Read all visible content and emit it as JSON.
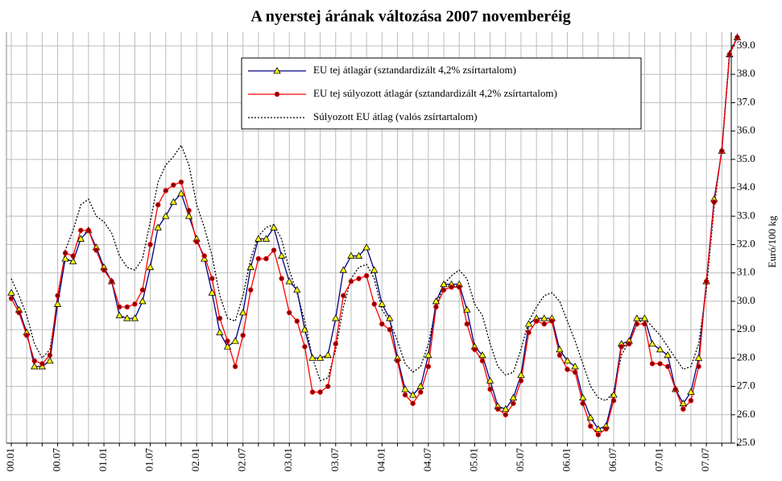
{
  "chart_data": {
    "type": "line",
    "title": "A nyerstej árának változása 2007 novemberéig",
    "y_label": "Euró/100 kg",
    "categories": [
      "00.01",
      null,
      null,
      null,
      null,
      null,
      "00.07",
      null,
      null,
      null,
      null,
      null,
      "01.01",
      null,
      null,
      null,
      null,
      null,
      "01.07",
      null,
      null,
      null,
      null,
      null,
      "02.01",
      null,
      null,
      null,
      null,
      null,
      "02.07",
      null,
      null,
      null,
      null,
      null,
      "03.01",
      null,
      null,
      null,
      null,
      null,
      "03.07",
      null,
      null,
      null,
      null,
      null,
      "04.01",
      null,
      null,
      null,
      null,
      null,
      "04.07",
      null,
      null,
      null,
      null,
      null,
      "05.01",
      null,
      null,
      null,
      null,
      null,
      "05.07",
      null,
      null,
      null,
      null,
      null,
      "06.01",
      null,
      null,
      null,
      null,
      null,
      "06.07",
      null,
      null,
      null,
      null,
      null,
      "07.01",
      null,
      null,
      null,
      null,
      null,
      "07.07",
      null,
      null,
      null,
      null
    ],
    "series": [
      {
        "name": "EU tej átlagár (sztandardizált 4,2% zsírtartalom)",
        "color": "#000080",
        "marker": "triangle",
        "dash": "solid",
        "values": [
          30.3,
          29.7,
          28.9,
          27.7,
          27.7,
          27.9,
          29.9,
          31.5,
          31.4,
          32.2,
          32.5,
          31.9,
          31.2,
          30.7,
          29.5,
          29.4,
          29.4,
          30.0,
          31.2,
          32.6,
          33.0,
          33.5,
          33.8,
          33.0,
          32.2,
          31.5,
          30.3,
          28.9,
          28.4,
          28.6,
          29.6,
          31.2,
          32.2,
          32.2,
          32.6,
          31.6,
          30.7,
          30.4,
          29.0,
          28.0,
          28.0,
          28.1,
          29.4,
          31.1,
          31.6,
          31.6,
          31.9,
          31.1,
          29.9,
          29.4,
          28.0,
          26.9,
          26.7,
          27.0,
          28.1,
          30.0,
          30.6,
          30.6,
          30.6,
          29.7,
          28.4,
          28.1,
          27.2,
          26.3,
          26.2,
          26.6,
          27.4,
          29.2,
          29.4,
          29.4,
          29.4,
          28.3,
          27.9,
          27.7,
          26.6,
          25.9,
          25.5,
          25.6,
          26.7,
          28.5,
          28.6,
          29.4,
          29.4,
          28.5,
          28.3,
          28.1,
          26.9,
          26.4,
          26.8,
          28.0,
          30.7,
          33.6,
          35.3,
          38.7,
          39.3
        ]
      },
      {
        "name": "EU tej súlyozott átlagár (sztandardizált 4,2% zsírtartalom)",
        "color": "#ff0000",
        "marker": "circle",
        "dash": "solid",
        "values": [
          30.1,
          29.6,
          28.8,
          27.9,
          27.8,
          28.1,
          30.2,
          31.7,
          31.6,
          32.5,
          32.5,
          31.8,
          31.1,
          30.7,
          29.8,
          29.8,
          29.9,
          30.4,
          32.0,
          33.4,
          33.9,
          34.1,
          34.2,
          33.2,
          32.1,
          31.6,
          30.8,
          29.4,
          28.6,
          27.7,
          28.8,
          30.4,
          31.5,
          31.5,
          31.8,
          30.8,
          29.6,
          29.3,
          28.4,
          26.8,
          26.8,
          27.0,
          28.5,
          30.2,
          30.7,
          30.8,
          30.9,
          29.9,
          29.2,
          29.0,
          27.9,
          26.7,
          26.4,
          26.8,
          27.7,
          29.8,
          30.4,
          30.5,
          30.5,
          29.2,
          28.3,
          27.9,
          26.9,
          26.2,
          26.0,
          26.4,
          27.2,
          28.9,
          29.3,
          29.2,
          29.3,
          28.1,
          27.6,
          27.5,
          26.4,
          25.6,
          25.3,
          25.5,
          26.5,
          28.4,
          28.5,
          29.2,
          29.2,
          27.8,
          27.8,
          27.7,
          26.9,
          26.2,
          26.5,
          27.7,
          30.7,
          33.5,
          35.3,
          38.7,
          39.3
        ]
      },
      {
        "name": "Súlyozott EU átlag (valós zsírtartalom)",
        "color": "#000000",
        "marker": "none",
        "dash": "dotted",
        "values": [
          30.8,
          30.2,
          29.5,
          28.5,
          28.0,
          28.3,
          30.0,
          31.8,
          32.5,
          33.4,
          33.6,
          33.0,
          32.8,
          32.4,
          31.6,
          31.2,
          31.1,
          31.5,
          32.8,
          34.2,
          34.8,
          35.1,
          35.5,
          34.8,
          33.4,
          32.6,
          31.6,
          30.2,
          29.4,
          29.3,
          30.2,
          31.5,
          32.3,
          32.6,
          32.7,
          32.2,
          31.1,
          30.3,
          29.3,
          28.0,
          27.2,
          27.3,
          28.3,
          29.8,
          30.8,
          31.2,
          31.3,
          30.8,
          29.7,
          29.3,
          28.6,
          27.8,
          27.5,
          27.7,
          28.5,
          29.8,
          30.6,
          30.9,
          31.1,
          30.8,
          29.9,
          29.5,
          28.5,
          27.7,
          27.4,
          27.5,
          28.3,
          29.3,
          29.8,
          30.2,
          30.3,
          30.0,
          29.3,
          28.6,
          27.8,
          27.0,
          26.6,
          26.5,
          26.8,
          28.1,
          28.6,
          29.2,
          29.4,
          29.1,
          28.8,
          28.4,
          28.0,
          27.6,
          27.7,
          28.5,
          30.4,
          33.3,
          35.4,
          38.8,
          39.3
        ]
      }
    ],
    "ylim": [
      25,
      39
    ],
    "yticks": [
      {
        "value": 25,
        "label": "25.0"
      },
      {
        "value": 26,
        "label": "26.0"
      },
      {
        "value": 27,
        "label": "27.0"
      },
      {
        "value": 28,
        "label": "28.0"
      },
      {
        "value": 29,
        "label": "29.0"
      },
      {
        "value": 30,
        "label": "30.0"
      },
      {
        "value": 31,
        "label": "31.0"
      },
      {
        "value": 32,
        "label": "32.0"
      },
      {
        "value": 33,
        "label": "33.0"
      },
      {
        "value": 34,
        "label": "34.0"
      },
      {
        "value": 35,
        "label": "35.0"
      },
      {
        "value": 36,
        "label": "36.0"
      },
      {
        "value": 37,
        "label": "37.0"
      },
      {
        "value": 38,
        "label": "38.0"
      },
      {
        "value": 39,
        "label": "39.0"
      }
    ],
    "y_axis_side": "right",
    "grid": true
  }
}
